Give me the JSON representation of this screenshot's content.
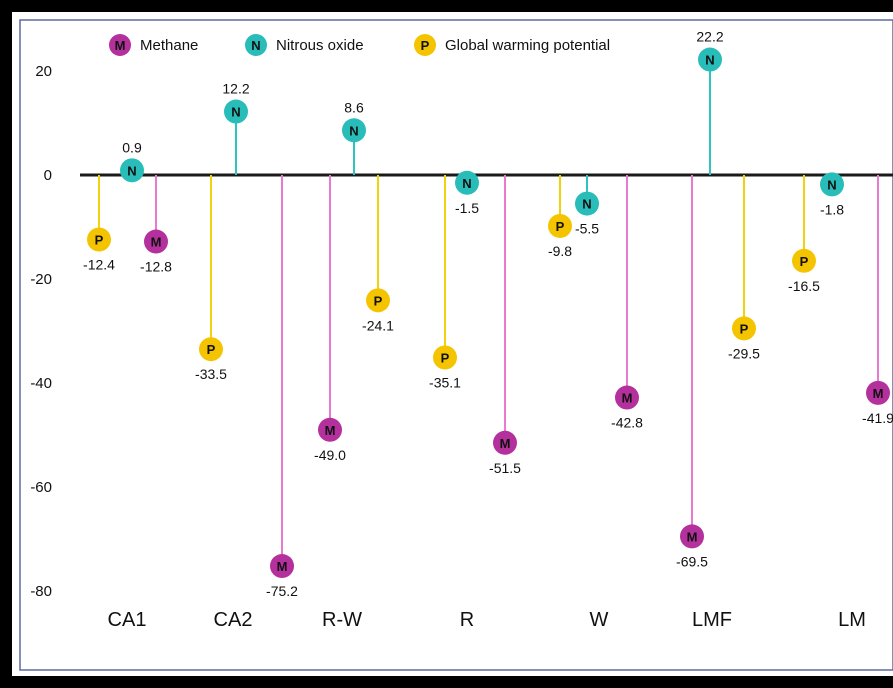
{
  "chart_data": {
    "type": "lollipop",
    "categories": [
      "CA1",
      "CA2",
      "R-W",
      "R",
      "W",
      "LMF",
      "LM"
    ],
    "series": [
      {
        "name": "Methane",
        "marker": "M",
        "color": "#e87ad0",
        "dot_color": "#b4309c",
        "values": [
          -12.8,
          -75.2,
          -49.0,
          -51.5,
          -42.8,
          -69.5,
          -41.9
        ]
      },
      {
        "name": "Nitrous oxide",
        "marker": "N",
        "color": "#2ec4c0",
        "dot_color": "#28bdb8",
        "values": [
          0.9,
          12.2,
          8.6,
          -1.5,
          -5.5,
          22.2,
          -1.8
        ]
      },
      {
        "name": "Global warming potential",
        "marker": "P",
        "color": "#f2d20c",
        "dot_color": "#f5c400",
        "values": [
          -12.4,
          -33.5,
          -24.1,
          -35.1,
          -9.8,
          -29.5,
          -16.5
        ]
      }
    ],
    "value_labels": {
      "Methane": [
        "-12.8",
        "-75.2",
        "-49.0",
        "-51.5",
        "-42.8",
        "-69.5",
        "-41.9"
      ],
      "Nitrous oxide": [
        "0.9",
        "12.2",
        "8.6",
        "-1.5",
        "-5.5",
        "22.2",
        "-1.8"
      ],
      "Global warming potential": [
        "-12.4",
        "-33.5",
        "-24.1",
        "-35.1",
        "-9.8",
        "-29.5",
        "-16.5"
      ]
    },
    "y_ticks": [
      20,
      0,
      -20,
      -40,
      -60,
      -80
    ],
    "y_tick_labels": [
      "20",
      "0",
      "-20",
      "-40",
      "-60",
      "-80"
    ],
    "ylim": [
      -80,
      20
    ],
    "legend_position": "top",
    "grid": false
  }
}
